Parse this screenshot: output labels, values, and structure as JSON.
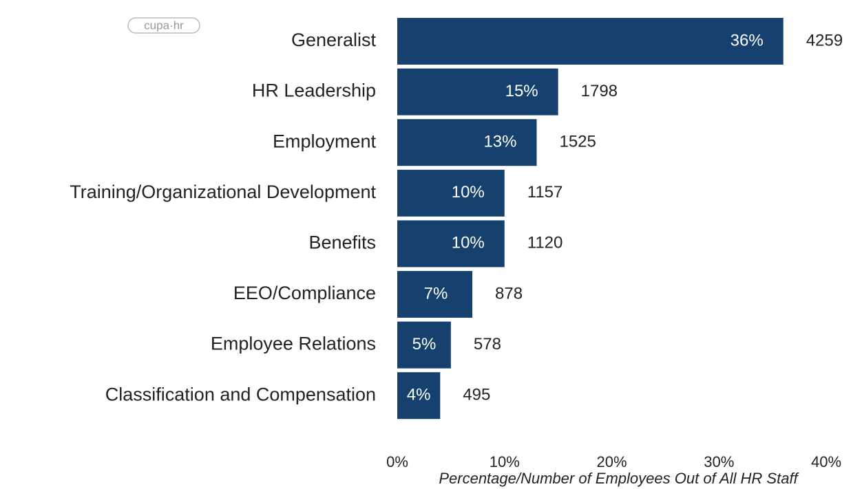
{
  "chart_data": {
    "type": "bar",
    "orientation": "horizontal",
    "logo": "cupa·hr",
    "categories": [
      "Generalist",
      "HR Leadership",
      "Employment",
      "Training/Organizational Development",
      "Benefits",
      "EEO/Compliance",
      "Employee Relations",
      "Classification and Compensation"
    ],
    "values": [
      36,
      15,
      13,
      10,
      10,
      7,
      5,
      4
    ],
    "value_labels": [
      "36%",
      "15%",
      "13%",
      "10%",
      "10%",
      "7%",
      "5%",
      "4%"
    ],
    "counts": [
      4259,
      1798,
      1525,
      1157,
      1120,
      878,
      578,
      495
    ],
    "color": "#16416f",
    "xlim": [
      0,
      40
    ],
    "xticks": [
      {
        "value": 0,
        "label": "0%"
      },
      {
        "value": 10,
        "label": "10%"
      },
      {
        "value": 20,
        "label": "20%"
      },
      {
        "value": 30,
        "label": "30%"
      },
      {
        "value": 40,
        "label": "40%"
      }
    ],
    "xlabel": "Percentage/Number of Employees Out of All HR Staff",
    "grid": false
  }
}
